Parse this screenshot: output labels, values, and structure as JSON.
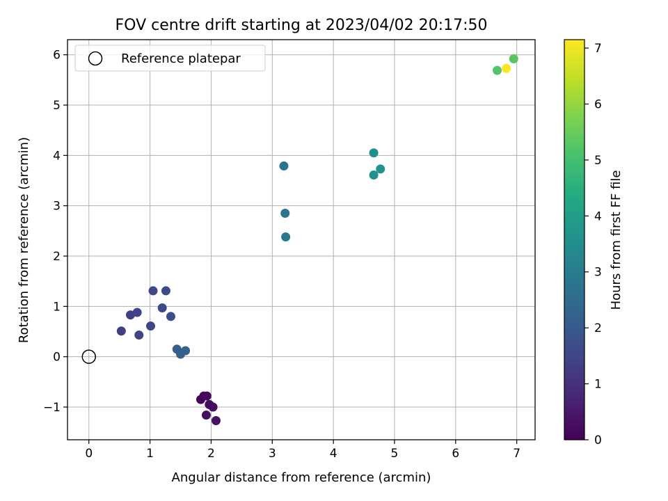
{
  "chart_data": {
    "type": "scatter",
    "title": "FOV centre drift starting at 2023/04/02 20:17:50",
    "xlabel": "Angular distance from reference (arcmin)",
    "ylabel": "Rotation from reference (arcmin)",
    "xlim": [
      -0.35,
      7.3
    ],
    "ylim": [
      -1.65,
      6.3
    ],
    "xticks": [
      0,
      1,
      2,
      3,
      4,
      5,
      6,
      7
    ],
    "yticks": [
      -1,
      0,
      1,
      2,
      3,
      4,
      5,
      6
    ],
    "grid": true,
    "legend": {
      "placement": "top-left",
      "entries": [
        "Reference platepar"
      ]
    },
    "reference_point": {
      "x": 0,
      "y": 0,
      "name": "Reference platepar"
    },
    "colorbar": {
      "label": "Hours from first FF file",
      "range": [
        0,
        7.15
      ],
      "ticks": [
        0,
        1,
        2,
        3,
        4,
        5,
        6,
        7
      ],
      "colormap": "viridis"
    },
    "points": [
      {
        "x": 1.83,
        "y": -0.85,
        "h": 0.05
      },
      {
        "x": 1.88,
        "y": -0.78,
        "h": 0.1
      },
      {
        "x": 1.93,
        "y": -0.78,
        "h": 0.15
      },
      {
        "x": 1.97,
        "y": -0.95,
        "h": 0.2
      },
      {
        "x": 2.03,
        "y": -1.0,
        "h": 0.25
      },
      {
        "x": 1.92,
        "y": -1.16,
        "h": 0.3
      },
      {
        "x": 2.08,
        "y": -1.27,
        "h": 0.35
      },
      {
        "x": 0.53,
        "y": 0.51,
        "h": 1.3
      },
      {
        "x": 0.68,
        "y": 0.83,
        "h": 1.35
      },
      {
        "x": 0.79,
        "y": 0.88,
        "h": 1.4
      },
      {
        "x": 0.82,
        "y": 0.43,
        "h": 1.45
      },
      {
        "x": 1.01,
        "y": 0.61,
        "h": 1.5
      },
      {
        "x": 1.05,
        "y": 1.31,
        "h": 1.55
      },
      {
        "x": 1.2,
        "y": 0.97,
        "h": 1.6
      },
      {
        "x": 1.26,
        "y": 1.31,
        "h": 1.65
      },
      {
        "x": 1.34,
        "y": 0.8,
        "h": 1.7
      },
      {
        "x": 1.44,
        "y": 0.15,
        "h": 2.1
      },
      {
        "x": 1.5,
        "y": 0.05,
        "h": 2.15
      },
      {
        "x": 1.58,
        "y": 0.12,
        "h": 2.2
      },
      {
        "x": 3.19,
        "y": 3.79,
        "h": 2.75
      },
      {
        "x": 3.21,
        "y": 2.85,
        "h": 2.8
      },
      {
        "x": 3.22,
        "y": 2.38,
        "h": 2.85
      },
      {
        "x": 4.66,
        "y": 4.05,
        "h": 3.55
      },
      {
        "x": 4.66,
        "y": 3.61,
        "h": 3.6
      },
      {
        "x": 4.77,
        "y": 3.73,
        "h": 3.65
      },
      {
        "x": 6.68,
        "y": 5.69,
        "h": 5.2
      },
      {
        "x": 6.95,
        "y": 5.92,
        "h": 5.25
      },
      {
        "x": 6.83,
        "y": 5.73,
        "h": 7.1
      }
    ]
  }
}
